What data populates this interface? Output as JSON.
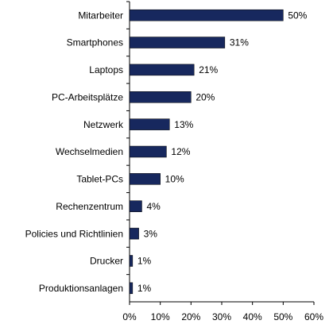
{
  "chart_data": {
    "type": "bar",
    "orientation": "horizontal",
    "categories": [
      "Mitarbeiter",
      "Smartphones",
      "Laptops",
      "PC-Arbeitsplätze",
      "Netzwerk",
      "Wechselmedien",
      "Tablet-PCs",
      "Rechenzentrum",
      "Policies und Richtlinien",
      "Drucker",
      "Produktionsanlagen"
    ],
    "values": [
      50,
      31,
      21,
      20,
      13,
      12,
      10,
      4,
      3,
      1,
      1
    ],
    "value_labels": [
      "50%",
      "31%",
      "21%",
      "20%",
      "13%",
      "12%",
      "10%",
      "4%",
      "3%",
      "1%",
      "1%"
    ],
    "color": "#17285e",
    "xlim": [
      0,
      60
    ],
    "xticks": [
      {
        "value": 0,
        "label": "0%"
      },
      {
        "value": 10,
        "label": "10%"
      },
      {
        "value": 20,
        "label": "20%"
      },
      {
        "value": 30,
        "label": "30%"
      },
      {
        "value": 40,
        "label": "40%"
      },
      {
        "value": 50,
        "label": "50%"
      },
      {
        "value": 60,
        "label": "60%"
      }
    ],
    "grid": false
  }
}
